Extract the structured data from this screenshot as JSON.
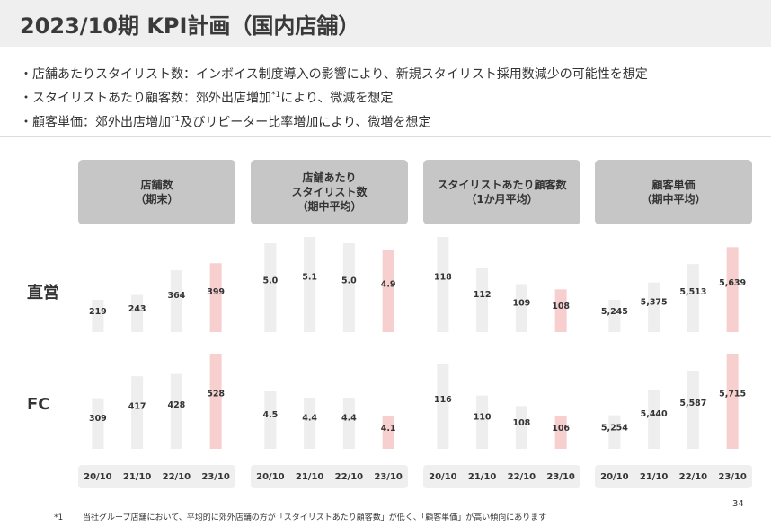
{
  "title": "2023/10期 KPI計画（国内店舗）",
  "bullets": {
    "b1": "・店舗あたりスタイリスト数：インボイス制度導入の影響により、新規スタイリスト採用数減少の可能性を想定",
    "b2_pre": "・スタイリストあたり顧客数：郊外出店増加",
    "b2_sup": "*1",
    "b2_post": "により、微減を想定",
    "b3_pre": "・顧客単価：郊外出店増加",
    "b3_sup": "*1",
    "b3_post": "及びリピーター比率増加により、微増を想定"
  },
  "footnote": {
    "mark": "*1",
    "text": "当社グループ店舗において、平均的に郊外店舗の方が「スタイリストあたり顧客数」が低く、「顧客単価」が高い傾向にあります"
  },
  "page_number": "34",
  "colors": {
    "bar_actual": "#eeeeee",
    "bar_plan": "#f8cfcf",
    "header_bg": "#c6c6c6",
    "title_bg": "#efefef"
  },
  "chart_data": {
    "type": "bar",
    "categories": [
      "20/10",
      "21/10",
      "22/10",
      "23/10"
    ],
    "row_labels": [
      "直営",
      "FC"
    ],
    "panels": [
      {
        "header": "店舗数\n（期末）",
        "series": [
          {
            "values": [
              219,
              243,
              364,
              399
            ],
            "labels": [
              "219",
              "243",
              "364",
              "399"
            ]
          },
          {
            "values": [
              309,
              417,
              428,
              528
            ],
            "labels": [
              "309",
              "417",
              "428",
              "528"
            ]
          }
        ]
      },
      {
        "header": "店舗あたり\nスタイリスト数\n（期中平均）",
        "series": [
          {
            "values": [
              5.0,
              5.1,
              5.0,
              4.9
            ],
            "labels": [
              "5.0",
              "5.1",
              "5.0",
              "4.9"
            ]
          },
          {
            "values": [
              4.5,
              4.4,
              4.4,
              4.1
            ],
            "labels": [
              "4.5",
              "4.4",
              "4.4",
              "4.1"
            ]
          }
        ]
      },
      {
        "header": "スタイリストあたり顧客数\n（1か月平均）",
        "series": [
          {
            "values": [
              118,
              112,
              109,
              108
            ],
            "labels": [
              "118",
              "112",
              "109",
              "108"
            ]
          },
          {
            "values": [
              116,
              110,
              108,
              106
            ],
            "labels": [
              "116",
              "110",
              "108",
              "106"
            ]
          }
        ]
      },
      {
        "header": "顧客単価\n（期中平均）",
        "series": [
          {
            "values": [
              5245,
              5375,
              5513,
              5639
            ],
            "labels": [
              "5,245",
              "5,375",
              "5,513",
              "5,639"
            ]
          },
          {
            "values": [
              5254,
              5440,
              5587,
              5715
            ],
            "labels": [
              "5,254",
              "5,440",
              "5,587",
              "5,715"
            ]
          }
        ]
      }
    ]
  }
}
